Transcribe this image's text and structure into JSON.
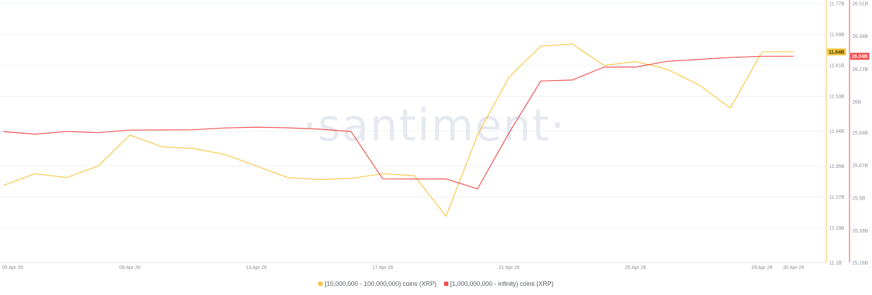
{
  "chart_data": {
    "type": "line",
    "watermark": "·santiment·",
    "x": [
      "05 Apr 26",
      "06 Apr 26",
      "07 Apr 26",
      "08 Apr 26",
      "09 Apr 26",
      "10 Apr 26",
      "11 Apr 26",
      "12 Apr 26",
      "13 Apr 26",
      "14 Apr 26",
      "15 Apr 26",
      "16 Apr 26",
      "17 Apr 26",
      "18 Apr 26",
      "19 Apr 26",
      "20 Apr 26",
      "21 Apr 26",
      "22 Apr 26",
      "23 Apr 26",
      "24 Apr 26",
      "25 Apr 26",
      "26 Apr 26",
      "27 Apr 26",
      "28 Apr 26",
      "29 Apr 26",
      "30 Apr 26"
    ],
    "x_tick_labels": [
      "05 Apr 26",
      "09 Apr 26",
      "13 Apr 26",
      "17 Apr 26",
      "21 Apr 26",
      "25 Apr 26",
      "29 Apr 26",
      "30 Apr 26"
    ],
    "series": [
      {
        "name": "[10,000,000 - 100,000,000) coins (XRP)",
        "color": "#f7c744",
        "axis": "left",
        "last_value_label": "11.64B",
        "values": [
          11.3,
          11.33,
          11.32,
          11.35,
          11.43,
          11.4,
          11.395,
          11.38,
          11.35,
          11.32,
          11.315,
          11.318,
          11.33,
          11.325,
          11.22,
          11.43,
          11.58,
          11.66,
          11.665,
          11.61,
          11.62,
          11.6,
          11.56,
          11.5,
          11.645,
          11.645
        ]
      },
      {
        "name": "[1,000,000,000 - infinity) coins (XRP)",
        "color": "#f24e4e",
        "axis": "right",
        "last_value_label": "26.24B",
        "values": [
          25.845,
          25.832,
          25.846,
          25.84,
          25.853,
          25.854,
          25.855,
          25.864,
          25.868,
          25.865,
          25.858,
          25.845,
          25.6,
          25.599,
          25.6,
          25.548,
          25.84,
          26.108,
          26.113,
          26.18,
          26.18,
          26.21,
          26.22,
          26.23,
          26.236,
          26.236
        ]
      }
    ],
    "y_left": {
      "min": 11.1,
      "max": 11.77,
      "ticks": [
        11.1,
        11.19,
        11.27,
        11.35,
        11.44,
        11.53,
        11.61,
        11.69,
        11.77
      ],
      "tick_labels": [
        "11.1B",
        "11.19B",
        "11.27B",
        "11.35B",
        "11.44B",
        "11.53B",
        "11.61B",
        "11.69B",
        "11.77B"
      ]
    },
    "y_right": {
      "min": 25.165,
      "max": 26.51,
      "ticks": [
        25.165,
        25.33,
        25.5,
        25.67,
        25.84,
        26.0,
        26.17,
        26.34,
        26.51
      ],
      "tick_labels": [
        "25.16B",
        "25.33B",
        "25.5B",
        "25.67B",
        "25.84B",
        "26B",
        "26.17B",
        "26.34B",
        "26.51B"
      ]
    },
    "grid": true
  },
  "legend": [
    {
      "label": "[10,000,000 - 100,000,000) coins (XRP)",
      "color": "#f7c744"
    },
    {
      "label": "[1,000,000,000 - infinity) coins (XRP)",
      "color": "#f24e4e"
    }
  ]
}
